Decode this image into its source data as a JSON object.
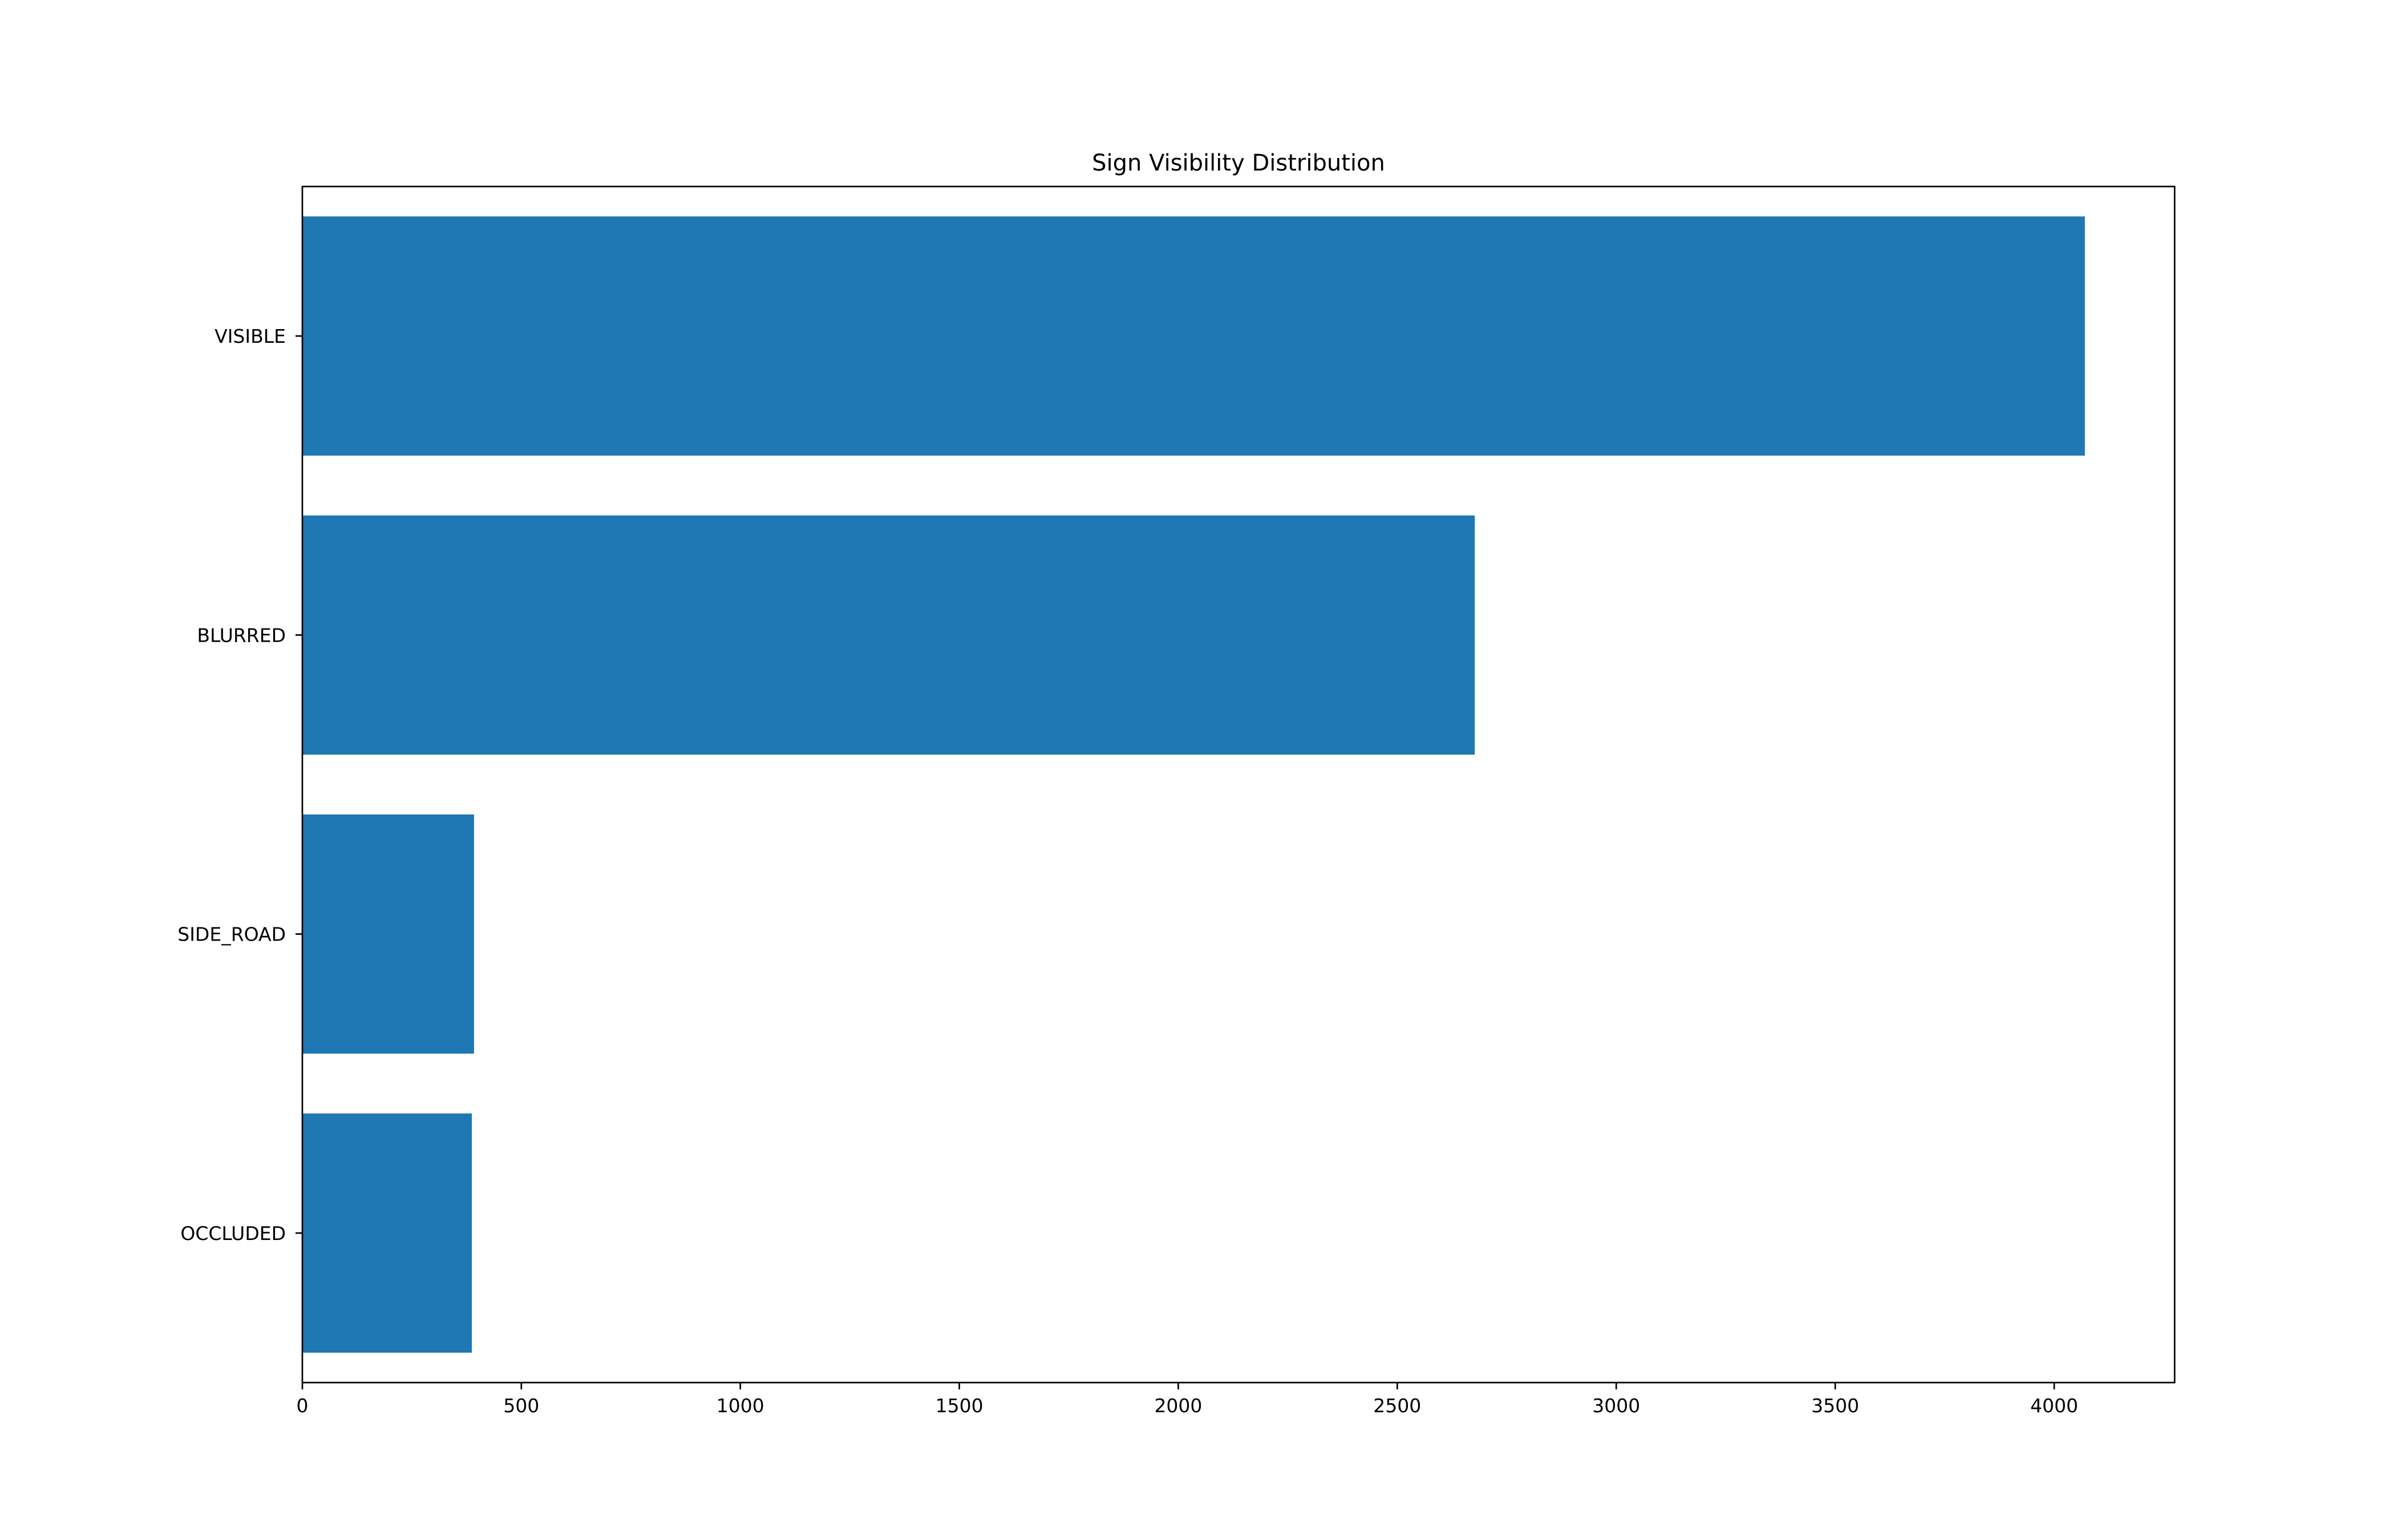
{
  "chart_data": {
    "type": "bar",
    "orientation": "horizontal",
    "title": "Sign Visibility Distribution",
    "xlabel": "",
    "ylabel": "",
    "categories": [
      "VISIBLE",
      "BLURRED",
      "SIDE_ROAD",
      "OCCLUDED"
    ],
    "values": [
      4070,
      2677,
      392,
      387
    ],
    "xlim": [
      0,
      4275
    ],
    "xticks": [
      0,
      500,
      1000,
      1500,
      2000,
      2500,
      3000,
      3500,
      4000
    ],
    "bar_color": "#1f77b4",
    "grid": false,
    "legend": "none"
  }
}
